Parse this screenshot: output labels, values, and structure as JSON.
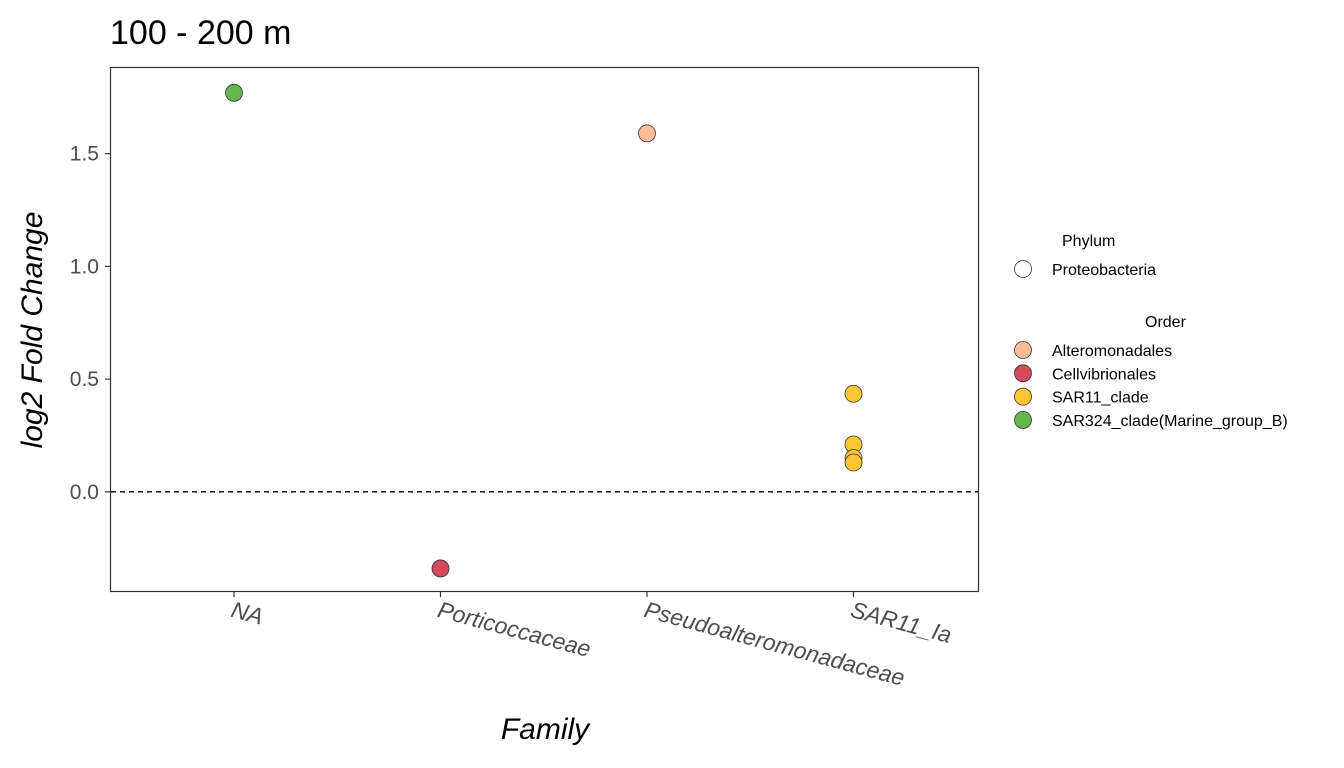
{
  "chart_data": {
    "type": "scatter",
    "title": "100 - 200 m",
    "xlabel": "Family",
    "ylabel": "log2 Fold Change",
    "categories": [
      "NA",
      "Porticoccaceae",
      "Pseudoalteromonadaceae",
      "SAR11_Ia"
    ],
    "ylim": [
      -0.44,
      1.88
    ],
    "yticks": [
      0.0,
      0.5,
      1.0,
      1.5
    ],
    "ytick_labels": [
      "0.0",
      "0.5",
      "1.0",
      "1.5"
    ],
    "hline": 0.0,
    "grid": false,
    "legend_position": "right",
    "points": [
      {
        "category": "NA",
        "y": 1.77,
        "order": "SAR324_clade(Marine_group_B)"
      },
      {
        "category": "Porticoccaceae",
        "y": -0.34,
        "order": "Cellvibrionales"
      },
      {
        "category": "Pseudoalteromonadaceae",
        "y": 1.59,
        "order": "Alteromonadales"
      },
      {
        "category": "SAR11_Ia",
        "y": 0.435,
        "order": "SAR11_clade"
      },
      {
        "category": "SAR11_Ia",
        "y": 0.21,
        "order": "SAR11_clade"
      },
      {
        "category": "SAR11_Ia",
        "y": 0.15,
        "order": "SAR11_clade"
      },
      {
        "category": "SAR11_Ia",
        "y": 0.13,
        "order": "SAR11_clade"
      }
    ],
    "legend": {
      "phylum_title": "Phylum",
      "phylum_items": [
        {
          "label": "Proteobacteria",
          "color": "#ffffff"
        }
      ],
      "order_title": "Order",
      "order_items": [
        {
          "label": "Alteromonadales",
          "color": "#FDBB98"
        },
        {
          "label": "Cellvibrionales",
          "color": "#D6485E"
        },
        {
          "label": "SAR11_clade",
          "color": "#FEC535"
        },
        {
          "label": "SAR324_clade(Marine_group_B)",
          "color": "#62B74E"
        }
      ]
    }
  }
}
